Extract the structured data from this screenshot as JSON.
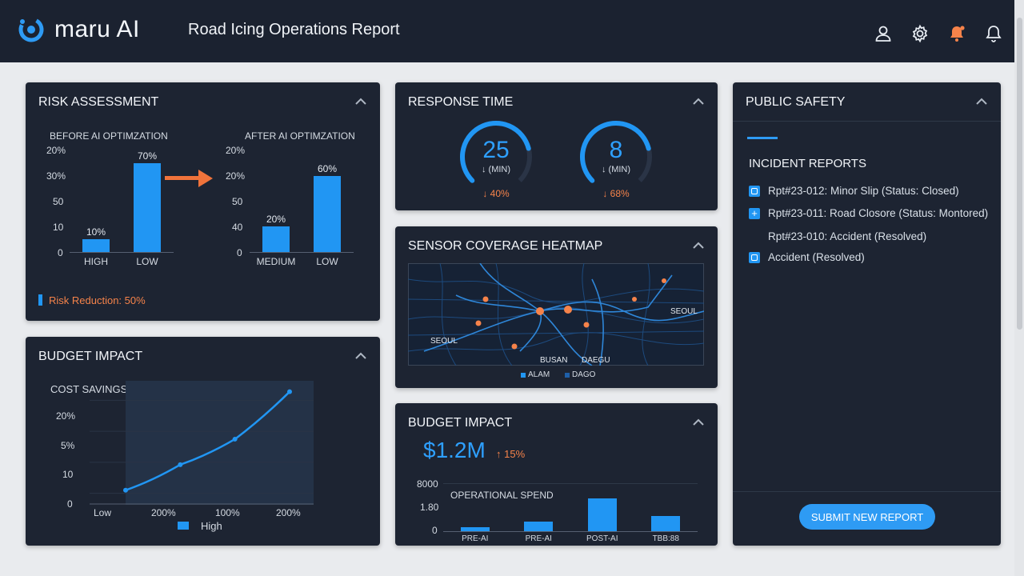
{
  "app": {
    "brand": "maru AI",
    "title": "Road Icing Operations Report"
  },
  "header_icons": [
    "user-icon",
    "gear-icon",
    "notification-alert-icon",
    "bell-icon"
  ],
  "colors": {
    "accent": "#2196f3",
    "alert": "#f6834a",
    "card_bg": "#1d2432",
    "topbar": "#1b2230"
  },
  "risk": {
    "title": "RISK ASSESSMENT",
    "before_label": "BEFORE AI OPTIMZATION",
    "after_label": "AFTER AI OPTIMZATION",
    "y_ticks": [
      "20%",
      "30%",
      "50",
      "10",
      "0"
    ],
    "y_ticks_after": [
      "20%",
      "20%",
      "50",
      "40",
      "0"
    ],
    "footer": "Risk Reduction: 50%"
  },
  "response": {
    "title": "RESPONSE TIME",
    "gauges": [
      {
        "value": "25",
        "unit": "↓ (MIN)",
        "delta": "↓ 40%",
        "fraction": 0.78
      },
      {
        "value": "8",
        "unit": "↓ (MIN)",
        "delta": "↓ 68%",
        "fraction": 0.78
      }
    ]
  },
  "heatmap": {
    "title": "SENSOR COVERAGE HEATMAP",
    "labels": {
      "seoul_east": "SEOUL",
      "seoul_west": "SEOUL",
      "busan": "BUSAN",
      "daegu": "DAEGU"
    },
    "legend": [
      "ALAM",
      "DAGO"
    ]
  },
  "budget_center": {
    "title": "BUDGET IMPACT",
    "amount": "$1.2M",
    "delta": "↑ 15%",
    "y_ticks": [
      "8000",
      "1.80",
      "0"
    ],
    "series_label": "OPERATIONAL SPEND"
  },
  "public_safety": {
    "title": "PUBLIC SAFETY",
    "section": "INCIDENT REPORTS",
    "incidents": [
      {
        "text": "Rpt#23-012: Minor Slip (Status: Closed)",
        "icon": "report-icon"
      },
      {
        "text": "Rpt#23-011: Road Closore (Status: Montored)",
        "icon": "add-report-icon"
      },
      {
        "text": "Rpt#23-010: Accident (Resolved)",
        "icon": ""
      },
      {
        "text": "Accident (Resolved)",
        "icon": "report-icon"
      }
    ],
    "submit_label": "SUBMIT NEW REPORT"
  },
  "budget_left": {
    "title": "BUDGET IMPACT",
    "subtitle": "COST SAVINGS (USD)",
    "y_ticks": [
      "20%",
      "5%",
      "10",
      "0"
    ],
    "legend": "High"
  },
  "chart_data": [
    {
      "type": "bar",
      "title": "BEFORE AI OPTIMZATION",
      "categories": [
        "HIGH",
        "LOW"
      ],
      "values": [
        10,
        70
      ],
      "data_labels": [
        "10%",
        "70%"
      ],
      "ylim": [
        0,
        80
      ]
    },
    {
      "type": "bar",
      "title": "AFTER AI OPTIMZATION",
      "categories": [
        "MEDIUM",
        "LOW"
      ],
      "values": [
        20,
        60
      ],
      "data_labels": [
        "20%",
        "60%"
      ],
      "ylim": [
        0,
        80
      ]
    },
    {
      "type": "line",
      "title": "COST SAVINGS (USD)",
      "x": [
        "Low",
        "200%",
        "100%",
        "200%"
      ],
      "values": [
        2,
        5.5,
        9,
        15.5
      ],
      "ylim": [
        0,
        17
      ]
    },
    {
      "type": "bar",
      "title": "OPERATIONAL SPEND",
      "categories": [
        "PRE-AI",
        "PRE-AI",
        "POST-AI",
        "TBB:88"
      ],
      "values": [
        5,
        11,
        38,
        17
      ],
      "ylim": [
        0,
        55
      ]
    }
  ]
}
